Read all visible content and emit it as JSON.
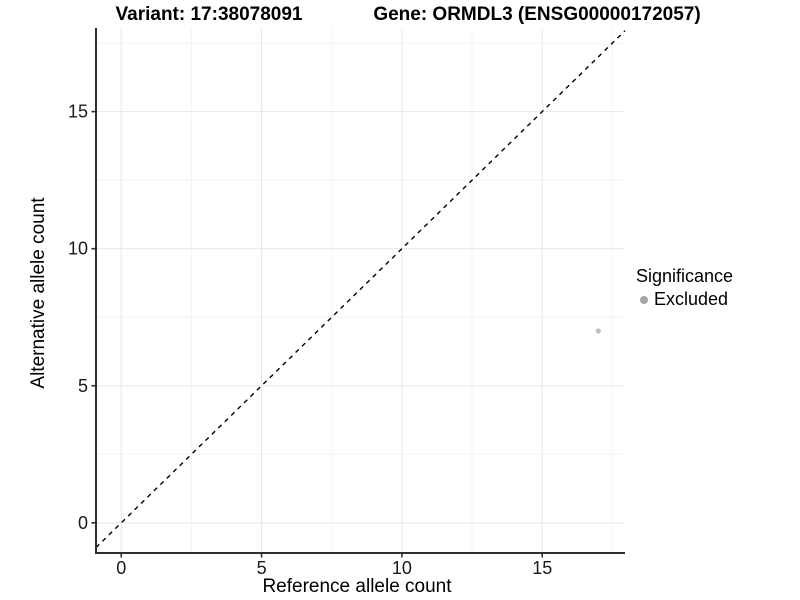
{
  "figure": {
    "background": "#ffffff"
  },
  "chart_data": {
    "type": "scatter",
    "title_left": "Variant: 17:38078091",
    "title_right": "Gene: ORMDL3 (ENSG00000172057)",
    "xlabel": "Reference allele count",
    "ylabel": "Alternative allele count",
    "xlim": [
      -0.9,
      17.95
    ],
    "ylim": [
      -1.1,
      18.05
    ],
    "x_major_ticks": [
      0,
      5,
      10,
      15
    ],
    "y_major_ticks": [
      0,
      5,
      10,
      15
    ],
    "x_minor_gridlines": [
      2.5,
      7.5,
      12.5,
      17.5
    ],
    "y_minor_gridlines": [
      2.5,
      7.5,
      12.5,
      17.5
    ],
    "grid": true,
    "legend_position": "right",
    "reference_line": {
      "type": "identity",
      "equation": "y = x",
      "style": "dashed",
      "color": "#000000"
    },
    "series": [
      {
        "name": "Excluded",
        "color": "#bebebe",
        "point_radius": 2.6,
        "points": [
          [
            17,
            7
          ]
        ]
      }
    ],
    "colors": {
      "axis": "#2e2e2e",
      "tick_label": "#1a1a1a",
      "grid_major": "#e7e7e7",
      "grid_minor": "#f3f3f3"
    }
  },
  "legend": {
    "title": "Significance",
    "items": [
      {
        "label": "Excluded",
        "color": "#a6a6a6"
      }
    ]
  }
}
